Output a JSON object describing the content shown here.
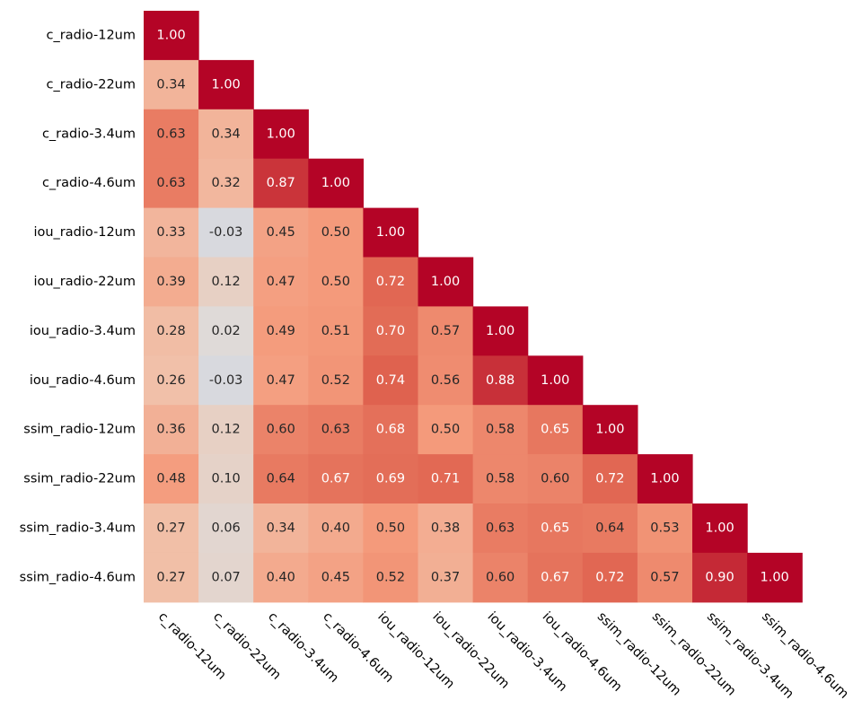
{
  "chart_data": {
    "type": "heatmap",
    "title": "",
    "xlabel": "",
    "ylabel": "",
    "mask": "upper-triangle",
    "value_range": [
      -1,
      1
    ],
    "colormap": "coolwarm",
    "labels": [
      "c_radio-12um",
      "c_radio-22um",
      "c_radio-3.4um",
      "c_radio-4.6um",
      "iou_radio-12um",
      "iou_radio-22um",
      "iou_radio-3.4um",
      "iou_radio-4.6um",
      "ssim_radio-12um",
      "ssim_radio-22um",
      "ssim_radio-3.4um",
      "ssim_radio-4.6um"
    ],
    "matrix": [
      [
        1.0
      ],
      [
        0.34,
        1.0
      ],
      [
        0.63,
        0.34,
        1.0
      ],
      [
        0.63,
        0.32,
        0.87,
        1.0
      ],
      [
        0.33,
        -0.03,
        0.45,
        0.5,
        1.0
      ],
      [
        0.39,
        0.12,
        0.47,
        0.5,
        0.72,
        1.0
      ],
      [
        0.28,
        0.02,
        0.49,
        0.51,
        0.7,
        0.57,
        1.0
      ],
      [
        0.26,
        -0.03,
        0.47,
        0.52,
        0.74,
        0.56,
        0.88,
        1.0
      ],
      [
        0.36,
        0.12,
        0.6,
        0.63,
        0.68,
        0.5,
        0.58,
        0.65,
        1.0
      ],
      [
        0.48,
        0.1,
        0.64,
        0.67,
        0.69,
        0.71,
        0.58,
        0.6,
        0.72,
        1.0
      ],
      [
        0.27,
        0.06,
        0.34,
        0.4,
        0.5,
        0.38,
        0.63,
        0.65,
        0.64,
        0.53,
        1.0
      ],
      [
        0.27,
        0.07,
        0.4,
        0.45,
        0.52,
        0.37,
        0.6,
        0.67,
        0.72,
        0.57,
        0.9,
        1.0
      ]
    ]
  }
}
